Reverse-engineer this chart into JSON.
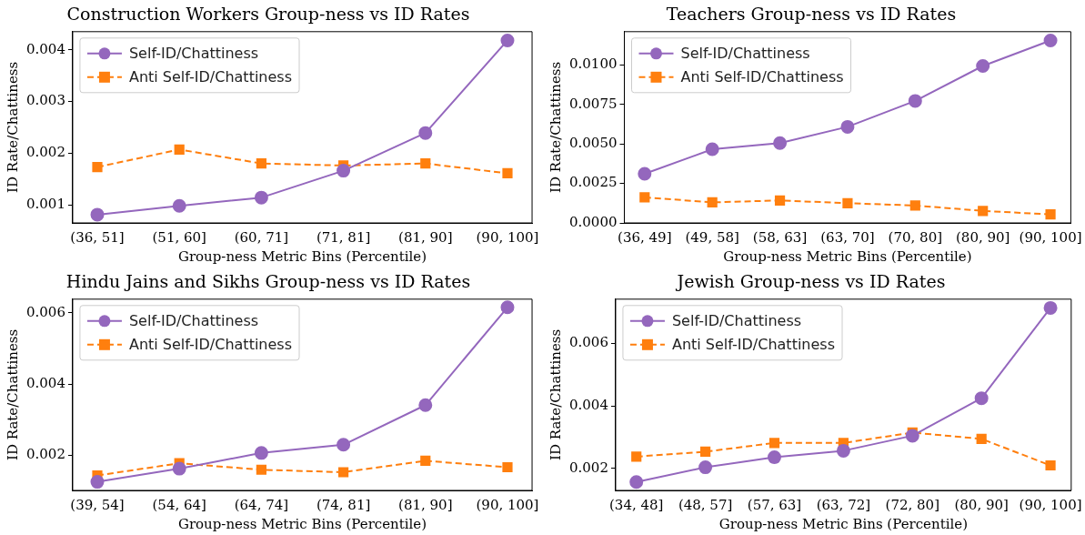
{
  "chart_data": [
    {
      "type": "line",
      "title": "Construction Workers Group-ness vs ID Rates",
      "xlabel": "Group-ness Metric Bins (Percentile)",
      "ylabel": "ID Rate/Chattiness",
      "categories": [
        "(36, 51]",
        "(51, 60]",
        "(60, 71]",
        "(71, 81]",
        "(81, 90]",
        "(90, 100]"
      ],
      "ylim": [
        0.00065,
        0.00435
      ],
      "yticks": [
        {
          "value": 0.001,
          "label": "0.001"
        },
        {
          "value": 0.002,
          "label": "0.002"
        },
        {
          "value": 0.003,
          "label": "0.003"
        },
        {
          "value": 0.004,
          "label": "0.004"
        }
      ],
      "legend": "top left",
      "grid": false,
      "series": [
        {
          "name": "Self-ID/Chattiness",
          "color": "#9467bd",
          "marker": "circle",
          "line_style": "solid",
          "values": [
            0.00081,
            0.00098,
            0.00114,
            0.00166,
            0.00239,
            0.00418
          ]
        },
        {
          "name": "Anti Self-ID/Chattiness",
          "color": "#ff7f0e",
          "marker": "square",
          "line_style": "dashed",
          "values": [
            0.00173,
            0.00207,
            0.0018,
            0.00176,
            0.0018,
            0.00161
          ]
        }
      ]
    },
    {
      "type": "line",
      "title": "Teachers Group-ness vs ID Rates",
      "xlabel": "Group-ness Metric Bins (Percentile)",
      "ylabel": "ID Rate/Chattiness",
      "categories": [
        "(36, 49]",
        "(49, 58]",
        "(58, 63]",
        "(63, 70]",
        "(70, 80]",
        "(80, 90]",
        "(90, 100]"
      ],
      "ylim": [
        0,
        0.0121
      ],
      "yticks": [
        {
          "value": 0,
          "label": "0.0000"
        },
        {
          "value": 0.0025,
          "label": "0.0025"
        },
        {
          "value": 0.005,
          "label": "0.0050"
        },
        {
          "value": 0.0075,
          "label": "0.0075"
        },
        {
          "value": 0.01,
          "label": "0.0100"
        }
      ],
      "legend": "top left",
      "grid": false,
      "series": [
        {
          "name": "Self-ID/Chattiness",
          "color": "#9467bd",
          "marker": "circle",
          "line_style": "solid",
          "values": [
            0.00311,
            0.00466,
            0.00505,
            0.00608,
            0.00772,
            0.00993,
            0.01154
          ]
        },
        {
          "name": "Anti Self-ID/Chattiness",
          "color": "#ff7f0e",
          "marker": "square",
          "line_style": "dashed",
          "values": [
            0.00162,
            0.0013,
            0.00142,
            0.00125,
            0.0011,
            0.00076,
            0.00054
          ]
        }
      ]
    },
    {
      "type": "line",
      "title": "Hindu Jains and Sikhs Group-ness vs ID Rates",
      "xlabel": "Group-ness Metric Bins (Percentile)",
      "ylabel": "ID Rate/Chattiness",
      "categories": [
        "(39, 54]",
        "(54, 64]",
        "(64, 74]",
        "(74, 81]",
        "(81, 90]",
        "(90, 100]"
      ],
      "ylim": [
        0.00102,
        0.00638
      ],
      "yticks": [
        {
          "value": 0.002,
          "label": "0.002"
        },
        {
          "value": 0.004,
          "label": "0.004"
        },
        {
          "value": 0.006,
          "label": "0.006"
        }
      ],
      "legend": "top left",
      "grid": false,
      "series": [
        {
          "name": "Self-ID/Chattiness",
          "color": "#9467bd",
          "marker": "circle",
          "line_style": "solid",
          "values": [
            0.00126,
            0.00163,
            0.00207,
            0.0023,
            0.00341,
            0.00615
          ]
        },
        {
          "name": "Anti Self-ID/Chattiness",
          "color": "#ff7f0e",
          "marker": "square",
          "line_style": "dashed",
          "values": [
            0.00144,
            0.00178,
            0.0016,
            0.00153,
            0.00185,
            0.00167
          ]
        }
      ]
    },
    {
      "type": "line",
      "title": "Jewish Group-ness vs ID Rates",
      "xlabel": "Group-ness Metric Bins (Percentile)",
      "ylabel": "ID Rate/Chattiness",
      "categories": [
        "(34, 48]",
        "(48, 57]",
        "(57, 63]",
        "(63, 72]",
        "(72, 80]",
        "(80, 90]",
        "(90, 100]"
      ],
      "ylim": [
        0.0013,
        0.00742
      ],
      "yticks": [
        {
          "value": 0.002,
          "label": "0.002"
        },
        {
          "value": 0.004,
          "label": "0.004"
        },
        {
          "value": 0.006,
          "label": "0.006"
        }
      ],
      "legend": "top left",
      "grid": false,
      "series": [
        {
          "name": "Self-ID/Chattiness",
          "color": "#9467bd",
          "marker": "circle",
          "line_style": "solid",
          "values": [
            0.00157,
            0.00204,
            0.00236,
            0.00257,
            0.00305,
            0.00425,
            0.00714
          ]
        },
        {
          "name": "Anti Self-ID/Chattiness",
          "color": "#ff7f0e",
          "marker": "square",
          "line_style": "dashed",
          "values": [
            0.00238,
            0.00254,
            0.00282,
            0.00282,
            0.00315,
            0.00295,
            0.0021
          ]
        }
      ]
    }
  ]
}
